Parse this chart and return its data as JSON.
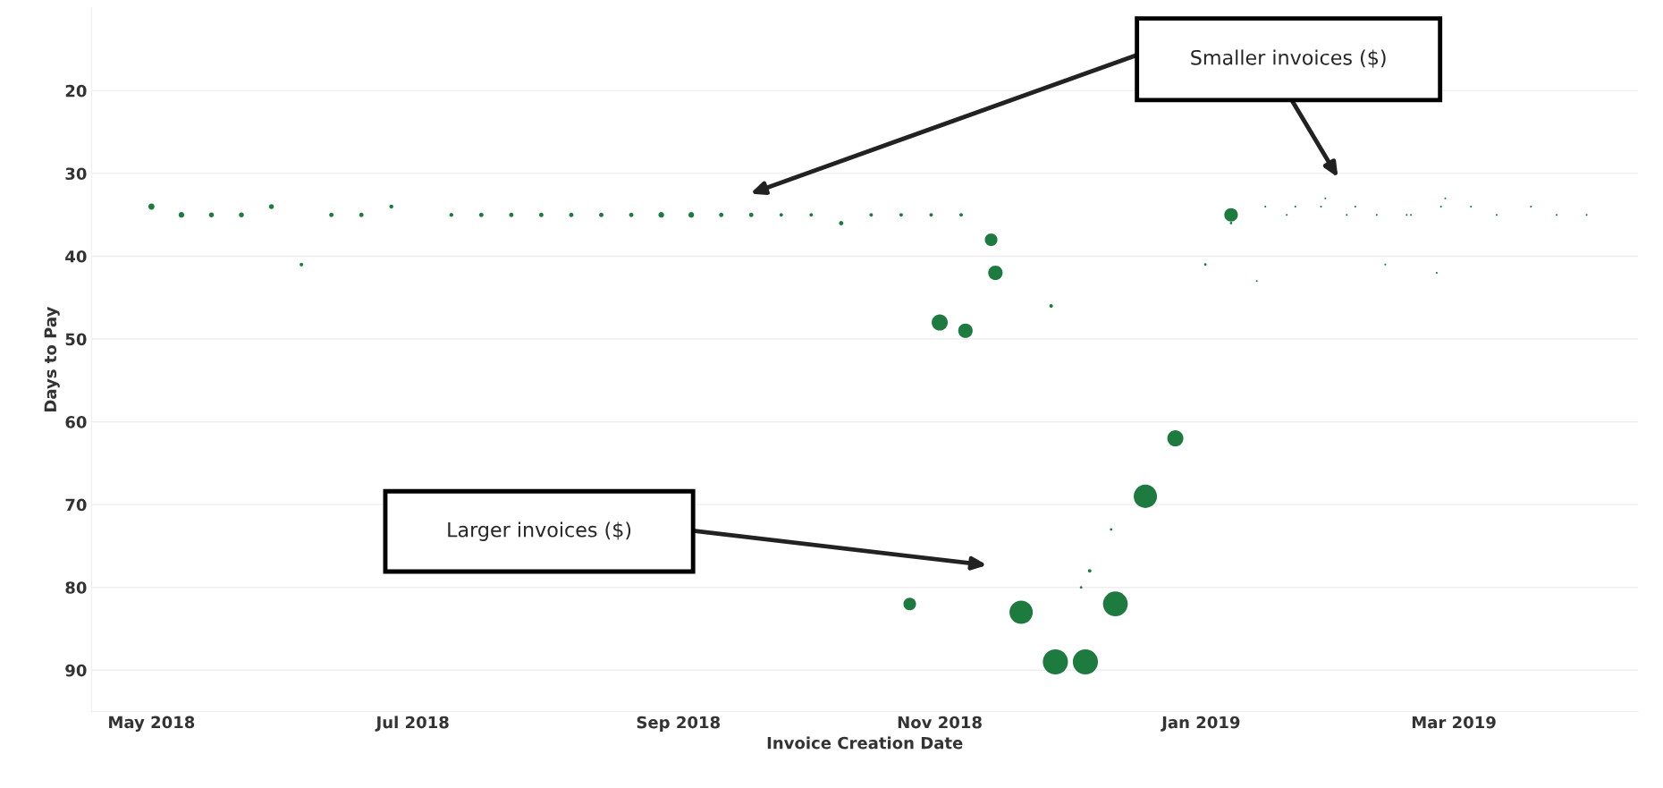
{
  "chart_data": {
    "type": "bubble",
    "xlabel": "Invoice Creation Date",
    "ylabel": "Days to Pay",
    "x": [
      "2018-05-01",
      "2018-05-08",
      "2018-05-15",
      "2018-05-22",
      "2018-05-29",
      "2018-06-05",
      "2018-06-12",
      "2018-06-19",
      "2018-06-26",
      "2018-07-10",
      "2018-07-17",
      "2018-07-24",
      "2018-07-31",
      "2018-08-07",
      "2018-08-14",
      "2018-08-21",
      "2018-08-28",
      "2018-09-04",
      "2018-09-11",
      "2018-09-18",
      "2018-09-25",
      "2018-10-02",
      "2018-10-09",
      "2018-10-16",
      "2018-10-23",
      "2018-10-25",
      "2018-10-30",
      "2018-11-01",
      "2018-11-06",
      "2018-11-07",
      "2018-11-13",
      "2018-11-14",
      "2018-11-20",
      "2018-11-27",
      "2018-11-28",
      "2018-12-04",
      "2018-12-05",
      "2018-12-06",
      "2018-12-11",
      "2018-12-12",
      "2018-12-19",
      "2018-12-26",
      "2019-01-02",
      "2019-01-08",
      "2019-01-08",
      "2019-01-14",
      "2019-01-16",
      "2019-01-21",
      "2019-01-23",
      "2019-01-29",
      "2019-01-30",
      "2019-02-04",
      "2019-02-06",
      "2019-02-11",
      "2019-02-13",
      "2019-02-18",
      "2019-02-19",
      "2019-02-25",
      "2019-02-26",
      "2019-02-27",
      "2019-03-05",
      "2019-03-11",
      "2019-03-19",
      "2019-03-25",
      "2019-04-01"
    ],
    "series": [
      {
        "color": "#1e7b40",
        "values": [
          34,
          35,
          35,
          35,
          34,
          41,
          35,
          35,
          34,
          35,
          35,
          35,
          35,
          35,
          35,
          35,
          35,
          35,
          35,
          35,
          35,
          35,
          36,
          35,
          35,
          82,
          35,
          48,
          35,
          49,
          38,
          42,
          83,
          46,
          89,
          80,
          89,
          78,
          73,
          82,
          69,
          62,
          41,
          35,
          36,
          43,
          34,
          35,
          34,
          34,
          33,
          35,
          34,
          35,
          41,
          35,
          35,
          42,
          34,
          33,
          34,
          35,
          34,
          35,
          35
        ],
        "sizes": [
          0.06,
          0.05,
          0.04,
          0.04,
          0.04,
          0.02,
          0.03,
          0.03,
          0.025,
          0.025,
          0.03,
          0.03,
          0.03,
          0.03,
          0.03,
          0.03,
          0.05,
          0.05,
          0.03,
          0.03,
          0.02,
          0.02,
          0.03,
          0.02,
          0.02,
          0.25,
          0.02,
          0.41,
          0.02,
          0.33,
          0.25,
          0.33,
          0.86,
          0.02,
          1,
          0.01,
          1,
          0.02,
          0.01,
          0.97,
          0.86,
          0.41,
          0.01,
          0.29,
          0.01,
          0.005,
          0.005,
          0.005,
          0.005,
          0.005,
          0.005,
          0.005,
          0.005,
          0.005,
          0.005,
          0.005,
          0.005,
          0.005,
          0.005,
          0.005,
          0.005,
          0.005,
          0.005,
          0.005,
          0.005
        ]
      }
    ],
    "relative": false,
    "xlim": [
      "2018-04-17",
      "2019-04-13"
    ],
    "xticks": [
      {
        "value": "2018-05-01",
        "label": "May 2018"
      },
      {
        "value": "2018-07-01",
        "label": "Jul 2018"
      },
      {
        "value": "2018-09-01",
        "label": "Sep 2018"
      },
      {
        "value": "2018-11-01",
        "label": "Nov 2018"
      },
      {
        "value": "2019-01-01",
        "label": "Jan 2019"
      },
      {
        "value": "2019-03-01",
        "label": "Mar 2019"
      }
    ],
    "ylim": [
      95,
      10
    ],
    "yticks": [
      20,
      30,
      40,
      50,
      60,
      70,
      80,
      90
    ],
    "grid": "y",
    "annotations": [
      "Smaller invoices ($)",
      "Larger invoices ($)"
    ]
  }
}
